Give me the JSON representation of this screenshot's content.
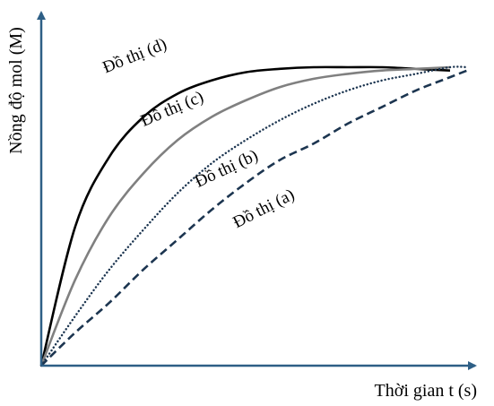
{
  "chart_data": {
    "type": "line",
    "title": "",
    "xlabel": "Thời gian t (s)",
    "ylabel": "Nồng độ mol (M)",
    "grid": false,
    "legend": "none",
    "axis_color": "#2e5f86",
    "series": [
      {
        "name": "Đồ thị (d)",
        "color": "#000000",
        "style": "solid",
        "points": [
          [
            0,
            0
          ],
          [
            1,
            0.42
          ],
          [
            2,
            0.63
          ],
          [
            3,
            0.75
          ],
          [
            4,
            0.82
          ],
          [
            5,
            0.86
          ],
          [
            6,
            0.885
          ],
          [
            7,
            0.895
          ],
          [
            8,
            0.9
          ],
          [
            9,
            0.9
          ],
          [
            10,
            0.9
          ],
          [
            11,
            0.895
          ],
          [
            12,
            0.89
          ]
        ]
      },
      {
        "name": "Đồ thị (c)",
        "color": "#808080",
        "style": "solid",
        "points": [
          [
            0,
            0
          ],
          [
            1,
            0.26
          ],
          [
            2,
            0.45
          ],
          [
            3,
            0.58
          ],
          [
            4,
            0.68
          ],
          [
            5,
            0.75
          ],
          [
            6,
            0.8
          ],
          [
            7,
            0.84
          ],
          [
            8,
            0.865
          ],
          [
            9,
            0.88
          ],
          [
            10,
            0.89
          ],
          [
            11,
            0.895
          ],
          [
            12,
            0.9
          ]
        ]
      },
      {
        "name": "Đồ thị (b)",
        "color": "#1c3550",
        "style": "dotted",
        "points": [
          [
            0,
            0
          ],
          [
            1,
            0.15
          ],
          [
            2,
            0.29
          ],
          [
            3,
            0.41
          ],
          [
            4,
            0.52
          ],
          [
            5,
            0.61
          ],
          [
            6,
            0.68
          ],
          [
            7,
            0.74
          ],
          [
            8,
            0.79
          ],
          [
            9,
            0.83
          ],
          [
            10,
            0.86
          ],
          [
            11,
            0.88
          ],
          [
            12,
            0.9
          ],
          [
            12.5,
            0.9
          ]
        ]
      },
      {
        "name": "Đồ thị (a)",
        "color": "#1c3550",
        "style": "dashed",
        "points": [
          [
            0,
            0
          ],
          [
            1,
            0.1
          ],
          [
            2,
            0.19
          ],
          [
            3,
            0.29
          ],
          [
            4,
            0.38
          ],
          [
            5,
            0.47
          ],
          [
            6,
            0.55
          ],
          [
            7,
            0.62
          ],
          [
            8,
            0.67
          ],
          [
            9,
            0.73
          ],
          [
            10,
            0.78
          ],
          [
            11,
            0.83
          ],
          [
            12,
            0.87
          ],
          [
            12.5,
            0.89
          ]
        ]
      }
    ],
    "labels": [
      {
        "series": 0,
        "text": "Đồ thị (d)",
        "at": [
          2.8,
          0.92
        ],
        "angle": -22
      },
      {
        "series": 1,
        "text": "Đồ thị (c)",
        "at": [
          3.9,
          0.76
        ],
        "angle": -23
      },
      {
        "series": 2,
        "text": "Đồ thị (b)",
        "at": [
          5.5,
          0.58
        ],
        "angle": -25
      },
      {
        "series": 3,
        "text": "Đồ thị (a)",
        "at": [
          6.6,
          0.46
        ],
        "angle": -27
      }
    ]
  }
}
